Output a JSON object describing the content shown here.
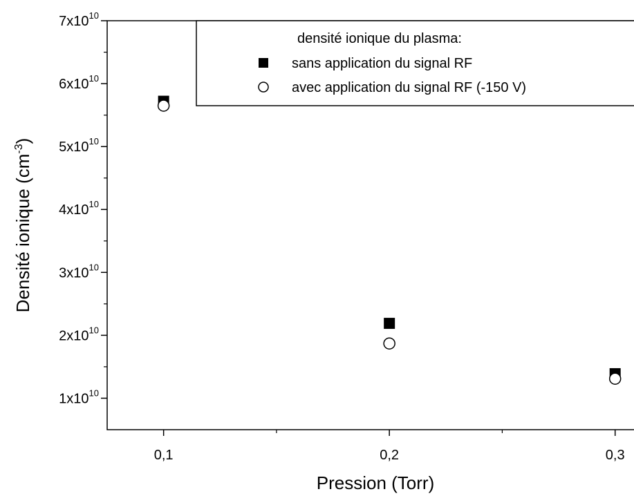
{
  "chart_data": {
    "type": "scatter",
    "title": "",
    "xlabel": "Pression (Torr)",
    "ylabel": "Densité ionique (cm",
    "ylabel_exponent": "-3",
    "ylabel_close": ")",
    "xlim": [
      0.075,
      0.32
    ],
    "ylim": [
      0.5,
      7.0
    ],
    "y_tick_exponent": "10",
    "x_ticks": [
      {
        "value": 0.1,
        "label": "0,1"
      },
      {
        "value": 0.2,
        "label": "0,2"
      },
      {
        "value": 0.3,
        "label": "0,3"
      }
    ],
    "x_minor_ticks": [
      0.15,
      0.25
    ],
    "y_ticks": [
      {
        "value": 1,
        "label": "1x10"
      },
      {
        "value": 2,
        "label": "2x10"
      },
      {
        "value": 3,
        "label": "3x10"
      },
      {
        "value": 4,
        "label": "4x10"
      },
      {
        "value": 5,
        "label": "5x10"
      },
      {
        "value": 6,
        "label": "6x10"
      },
      {
        "value": 7,
        "label": "7x10"
      }
    ],
    "y_minor_ticks": [
      1.5,
      2.5,
      3.5,
      4.5,
      5.5,
      6.5
    ],
    "grid": false,
    "legend_position": "top-right",
    "legend_title": "densité ionique du plasma:",
    "series": [
      {
        "name": "sans application du signal RF",
        "marker": "filled-square",
        "color": "#000000",
        "x": [
          0.1,
          0.2,
          0.3
        ],
        "y": [
          5.72,
          2.19,
          1.39
        ]
      },
      {
        "name": "avec application du signal RF (-150 V)",
        "marker": "open-circle",
        "color": "#000000",
        "x": [
          0.1,
          0.2,
          0.3
        ],
        "y": [
          5.65,
          1.87,
          1.31
        ]
      }
    ]
  }
}
